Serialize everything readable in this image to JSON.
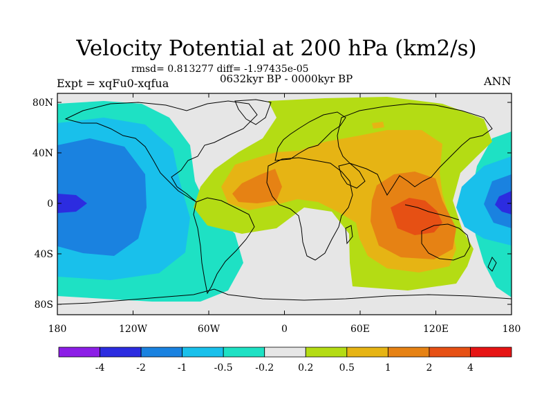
{
  "header": {
    "title": "Velocity Potential at 200 hPa (km2/s)",
    "stats": "rmsd= 0.813277 diff= -1.97435e-05",
    "experiment": "Expt = xqFu0-xqfua",
    "period": "0632kyr BP - 0000kyr BP",
    "season": "ANN"
  },
  "axes": {
    "x_ticks": [
      "180",
      "120W",
      "60W",
      "0",
      "60E",
      "120E",
      "180"
    ],
    "y_ticks": [
      "80N",
      "40N",
      "0",
      "40S",
      "80S"
    ]
  },
  "colorbar": {
    "labels": [
      "-4",
      "-2",
      "-1",
      "-0.5",
      "-0.2",
      "0.2",
      "0.5",
      "1",
      "2",
      "4"
    ],
    "colors": [
      "#8c1ee6",
      "#2c2ce0",
      "#1a82e0",
      "#19c0eb",
      "#1ee1c4",
      "#e6e6e6",
      "#b4dc14",
      "#e6b414",
      "#e68214",
      "#e65014",
      "#e61414"
    ]
  },
  "colors": {
    "background": "#e6e6e6",
    "land_outline": "#000000"
  }
}
